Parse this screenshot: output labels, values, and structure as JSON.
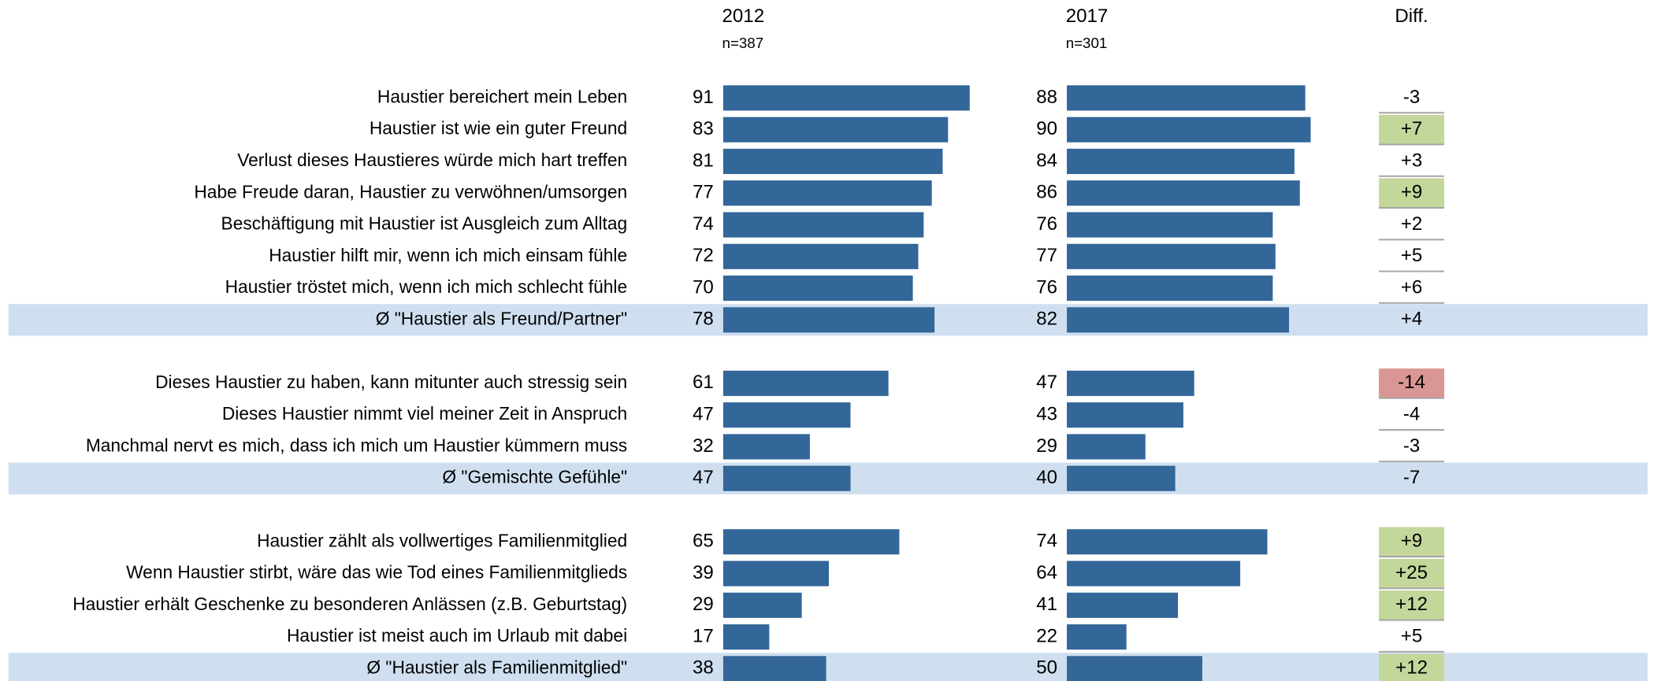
{
  "chart_data": {
    "type": "bar",
    "categories": [
      "Haustier bereichert mein Leben",
      "Haustier ist wie ein guter Freund",
      "Verlust dieses Haustieres würde mich hart treffen",
      "Habe Freude daran, Haustier zu verwöhnen/umsorgen",
      "Beschäftigung mit Haustier ist Ausgleich zum Alltag",
      "Haustier hilft mir, wenn ich mich einsam fühle",
      "Haustier tröstet mich, wenn ich mich schlecht fühle",
      "Ø \"Haustier als Freund/Partner\"",
      null,
      "Dieses Haustier zu haben, kann mitunter auch stressig sein",
      "Dieses Haustier nimmt viel meiner Zeit in Anspruch",
      "Manchmal nervt es mich, dass ich mich um Haustier kümmern muss",
      "Ø \"Gemischte Gefühle\"",
      null,
      "Haustier zählt als vollwertiges Familienmitglied",
      "Wenn Haustier stirbt, wäre das wie Tod eines Familienmitglieds",
      "Haustier erhält Geschenke zu besonderen Anlässen (z.B. Geburtstag)",
      "Haustier ist meist auch im Urlaub mit dabei",
      "Ø \"Haustier als Familienmitglied\""
    ],
    "series": [
      {
        "name": "2012",
        "subtitle": "n=387",
        "color": "#336699",
        "values": [
          91,
          83,
          81,
          77,
          74,
          72,
          70,
          78,
          null,
          61,
          47,
          32,
          47,
          null,
          65,
          39,
          29,
          17,
          38
        ]
      },
      {
        "name": "2017",
        "subtitle": "n=301",
        "color": "#336699",
        "values": [
          88,
          90,
          84,
          86,
          76,
          77,
          76,
          82,
          null,
          47,
          43,
          29,
          40,
          null,
          74,
          64,
          41,
          22,
          50
        ]
      }
    ],
    "diff": {
      "name": "Diff.",
      "values": [
        -3,
        7,
        3,
        9,
        2,
        5,
        6,
        4,
        null,
        -14,
        -4,
        -3,
        -7,
        null,
        9,
        25,
        12,
        5,
        12
      ],
      "value_labels": [
        "-3",
        "+7",
        "+3",
        "+9",
        "+2",
        "+5",
        "+6",
        "+4",
        null,
        "-14",
        "-4",
        "-3",
        "-7",
        null,
        "+9",
        "+25",
        "+12",
        "+5",
        "+12"
      ],
      "colors": [
        null,
        "#c4d79b",
        null,
        "#c4d79b",
        null,
        null,
        null,
        null,
        null,
        "#da9694",
        null,
        null,
        null,
        null,
        "#c4d79b",
        "#c4d79b",
        "#c4d79b",
        null,
        "#c4d79b"
      ]
    },
    "xlim": [
      0,
      100
    ],
    "highlight_color": "#cfdff0"
  }
}
